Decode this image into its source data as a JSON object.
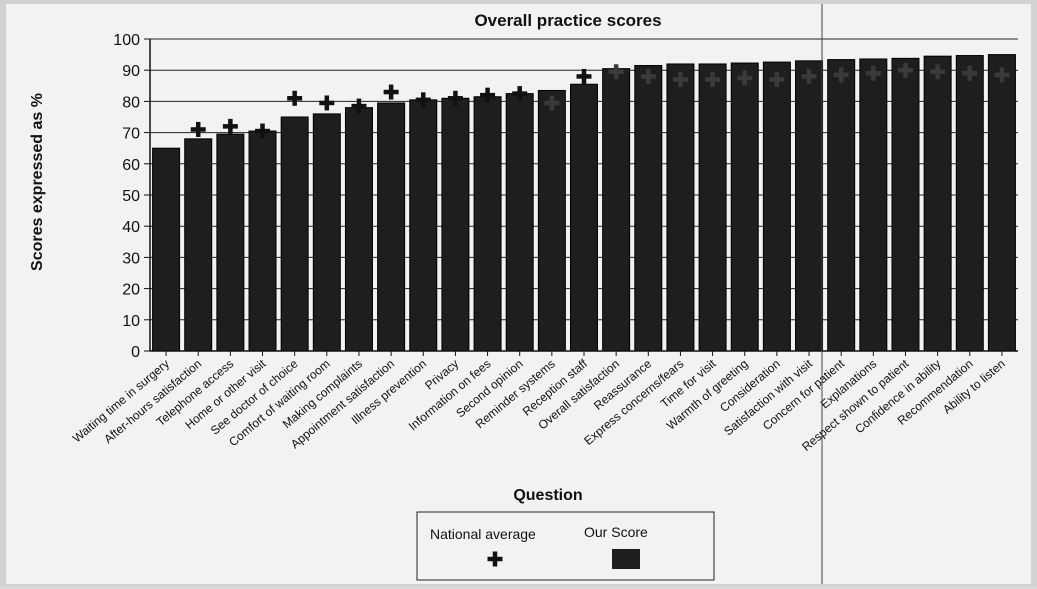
{
  "chart_data": {
    "type": "bar",
    "title": "Overall practice scores",
    "xlabel": "Question",
    "ylabel": "Scores expressed as %",
    "ylim": [
      0,
      100
    ],
    "yticks": [
      0,
      10,
      20,
      30,
      40,
      50,
      60,
      70,
      80,
      90,
      100
    ],
    "grid": true,
    "legend_position": "bottom",
    "categories": [
      "Waiting time in surgery",
      "After-hours satisfaction",
      "Telephone access",
      "Home or other visit",
      "See doctor of choice",
      "Comfort of waiting room",
      "Making complaints",
      "Appointment satisfaction",
      "Illness prevention",
      "Privacy",
      "Information on fees",
      "Second opinion",
      "Reminder systems",
      "Reception staff",
      "Overall satisfaction",
      "Reassurance",
      "Express concerns/fears",
      "Time for visit",
      "Warmth of greeting",
      "Consideration",
      "Satisfaction with visit",
      "Concern for patient",
      "Explanations",
      "Respect shown to patient",
      "Confidence in ability",
      "Recommendation",
      "Ability to listen"
    ],
    "series": [
      {
        "name": "Our Score",
        "mark": "bar",
        "values": [
          65,
          68,
          69.5,
          70.5,
          75,
          76,
          78,
          79.5,
          80.5,
          81,
          81.5,
          82.5,
          83.5,
          85.5,
          90.5,
          91.5,
          92,
          92,
          92.3,
          92.6,
          93,
          93.4,
          93.6,
          93.8,
          94.5,
          94.7,
          95
        ]
      },
      {
        "name": "National average",
        "mark": "cross",
        "values": [
          null,
          71,
          72,
          70.5,
          81,
          79.5,
          78.5,
          83,
          80.5,
          81,
          82,
          82.5,
          79.5,
          88,
          89.5,
          88,
          87,
          87,
          87.5,
          87,
          88,
          88.5,
          89,
          90,
          89.5,
          89,
          88.5
        ]
      }
    ]
  },
  "colors": {
    "bar": "#1e1e1e",
    "cross": "#111111",
    "paper": "#f2f2f2"
  }
}
